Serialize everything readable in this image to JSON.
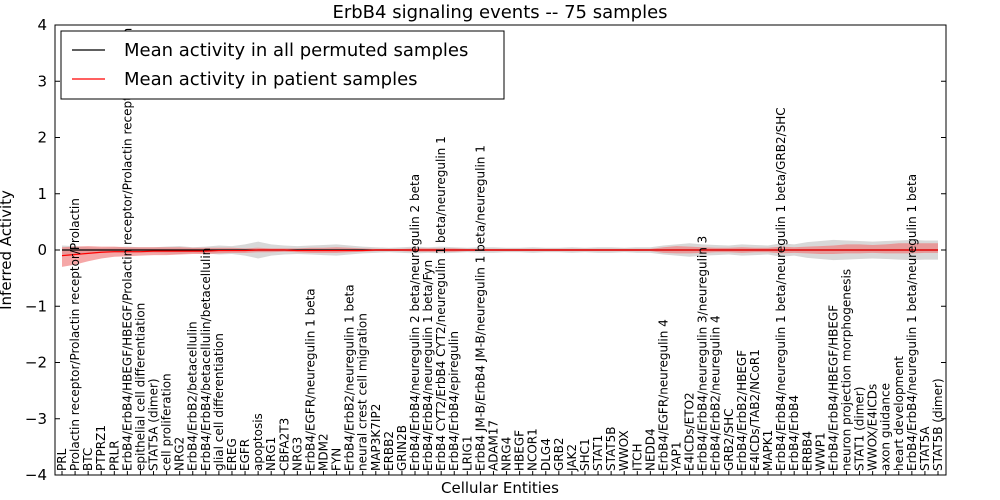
{
  "chart_data": {
    "type": "line",
    "title": "ErbB4 signaling events -- 75 samples",
    "xlabel": "Cellular Entities",
    "ylabel": "Inferred Activity",
    "ylim": [
      -4,
      4
    ],
    "yticks": [
      -4,
      -3,
      -2,
      -1,
      0,
      1,
      2,
      3,
      4
    ],
    "grid": false,
    "legend_position": "top-left",
    "colors": {
      "permuted_line": "#000000",
      "permuted_band": "#c8c8c8",
      "patient_line": "#ff0000",
      "patient_band": "#f07878"
    },
    "categories": [
      "PRL",
      "Prolactin receptor/Prolactin receptor/Prolactin",
      "BTC",
      "PTPRZ1",
      "PRLR",
      "ErbB4/ErbB4/HBEGF/HBEGF/Prolactin receptor/Prolactin receptor/Prolactin",
      "epithelial cell differentiation",
      "STAT5A (dimer)",
      "cell proliferation",
      "NRG2",
      "ErbB4/ErbB2/betacellulin",
      "ErbB4/ErbB4/betacellulin/betacellulin",
      "glial cell differentiation",
      "EREG",
      "EGFR",
      "apoptosis",
      "NRG1",
      "CBFA2T3",
      "NRG3",
      "ErbB4/EGFR/neuregulin 1 beta",
      "MDM2",
      "FYN",
      "ErbB4/ErbB2/neuregulin 1 beta",
      "neural crest cell migration",
      "MAP3K7IP2",
      "ERBB2",
      "GRIN2B",
      "ErbB4/ErbB4/neuregulin 2 beta/neuregulin 2 beta",
      "ErbB4/ErbB4/neuregulin 1 beta/Fyn",
      "ErbB4 CYT2/ErbB4 CYT2/neuregulin 1 beta/neuregulin 1",
      "ErbB4/ErbB4/epiregulin",
      "LRIG1",
      "ErbB4 JM-B/ErbB4 JM-B/neuregulin 1 beta/neuregulin 1",
      "ADAM17",
      "NRG4",
      "HBEGF",
      "NCOR1",
      "DLG4",
      "GRB2",
      "JAK2",
      "SHC1",
      "STAT1",
      "STAT5B",
      "WWOX",
      "ITCH",
      "NEDD4",
      "ErbB4/EGFR/neuregulin 4",
      "YAP1",
      "E4ICDs/ETO2",
      "ErbB4/ErbB4/neuregulin 3/neuregulin 3",
      "ErbB4/ErbB2/neuregulin 4",
      "GRB2/SHC",
      "ErbB4/ErbB2/HBEGF",
      "E4ICDs/TAB2/NCoR1",
      "MAPK1",
      "ErbB4/ErbB4/neuregulin 1 beta/neuregulin 1 beta/GRB2/SHC",
      "ErbB4/ErbB4",
      "ERBB4",
      "WWP1",
      "ErbB4/ErbB4/HBEGF/HBEGF",
      "neuron projection morphogenesis",
      "STAT1 (dimer)",
      "WWOX/E4ICDs",
      "axon guidance",
      "heart development",
      "ErbB4/ErbB4/neuregulin 1 beta/neuregulin 1 beta",
      "STAT5A",
      "STAT5B (dimer)"
    ],
    "series": [
      {
        "name": "Mean activity in all permuted samples",
        "values": [
          0.0,
          0.0,
          0.0,
          0.0,
          0.0,
          0.0,
          0.0,
          0.0,
          0.0,
          0.0,
          0.0,
          0.0,
          0.0,
          0.0,
          0.0,
          0.0,
          0.0,
          0.0,
          0.0,
          0.0,
          0.0,
          0.0,
          0.0,
          0.0,
          0.0,
          0.0,
          0.0,
          0.0,
          0.0,
          0.0,
          0.0,
          0.0,
          0.0,
          0.0,
          0.0,
          0.0,
          0.0,
          0.0,
          0.0,
          0.0,
          0.0,
          0.0,
          0.0,
          0.0,
          0.0,
          0.0,
          0.0,
          0.0,
          0.0,
          0.0,
          0.0,
          0.0,
          0.0,
          0.0,
          0.0,
          0.0,
          0.0,
          0.0,
          0.0,
          0.0,
          0.0,
          0.0,
          0.0,
          0.0,
          0.0,
          0.0,
          0.0,
          0.0
        ],
        "upper": [
          0.08,
          0.07,
          0.05,
          0.04,
          0.05,
          0.06,
          0.05,
          0.05,
          0.06,
          0.07,
          0.05,
          0.06,
          0.08,
          0.07,
          0.1,
          0.15,
          0.1,
          0.08,
          0.07,
          0.08,
          0.09,
          0.1,
          0.08,
          0.06,
          0.05,
          0.04,
          0.05,
          0.06,
          0.05,
          0.06,
          0.05,
          0.04,
          0.05,
          0.05,
          0.04,
          0.04,
          0.05,
          0.04,
          0.04,
          0.05,
          0.04,
          0.05,
          0.05,
          0.04,
          0.05,
          0.05,
          0.08,
          0.1,
          0.12,
          0.1,
          0.09,
          0.08,
          0.1,
          0.09,
          0.08,
          0.12,
          0.1,
          0.14,
          0.16,
          0.18,
          0.17,
          0.16,
          0.15,
          0.16,
          0.17,
          0.18,
          0.17,
          0.17
        ],
        "lower": [
          -0.08,
          -0.07,
          -0.05,
          -0.04,
          -0.05,
          -0.06,
          -0.05,
          -0.05,
          -0.06,
          -0.07,
          -0.05,
          -0.06,
          -0.08,
          -0.07,
          -0.1,
          -0.15,
          -0.1,
          -0.08,
          -0.07,
          -0.08,
          -0.09,
          -0.1,
          -0.08,
          -0.06,
          -0.05,
          -0.04,
          -0.05,
          -0.06,
          -0.05,
          -0.06,
          -0.05,
          -0.04,
          -0.05,
          -0.05,
          -0.04,
          -0.04,
          -0.05,
          -0.04,
          -0.04,
          -0.05,
          -0.04,
          -0.05,
          -0.05,
          -0.04,
          -0.05,
          -0.05,
          -0.08,
          -0.1,
          -0.12,
          -0.1,
          -0.09,
          -0.08,
          -0.1,
          -0.09,
          -0.08,
          -0.12,
          -0.1,
          -0.14,
          -0.16,
          -0.18,
          -0.17,
          -0.16,
          -0.15,
          -0.16,
          -0.17,
          -0.18,
          -0.17,
          -0.17
        ]
      },
      {
        "name": "Mean activity in patient samples",
        "values": [
          -0.1,
          -0.08,
          -0.06,
          -0.04,
          -0.03,
          -0.03,
          -0.03,
          -0.02,
          -0.02,
          -0.02,
          -0.02,
          -0.02,
          -0.01,
          -0.01,
          -0.01,
          0.0,
          0.0,
          0.0,
          -0.01,
          -0.01,
          -0.01,
          -0.01,
          -0.01,
          -0.01,
          0.0,
          0.0,
          0.0,
          0.0,
          0.0,
          0.0,
          0.0,
          0.0,
          0.0,
          0.0,
          0.0,
          0.0,
          0.0,
          0.0,
          0.0,
          0.0,
          0.0,
          0.0,
          0.0,
          0.0,
          0.0,
          0.0,
          0.0,
          0.0,
          0.0,
          0.0,
          0.0,
          0.0,
          0.0,
          0.0,
          0.0,
          0.0,
          0.0,
          0.0,
          0.0,
          0.0,
          0.0,
          0.0,
          0.0,
          0.0,
          0.0,
          0.0,
          0.0,
          0.0
        ],
        "upper": [
          0.05,
          0.06,
          0.07,
          0.06,
          0.06,
          0.05,
          0.05,
          0.05,
          0.05,
          0.05,
          0.04,
          0.04,
          0.04,
          0.04,
          0.03,
          0.04,
          0.03,
          0.03,
          0.03,
          0.04,
          0.04,
          0.05,
          0.04,
          0.03,
          0.02,
          0.02,
          0.02,
          0.03,
          0.03,
          0.03,
          0.03,
          0.02,
          0.02,
          0.02,
          0.02,
          0.02,
          0.02,
          0.02,
          0.02,
          0.02,
          0.02,
          0.02,
          0.02,
          0.02,
          0.02,
          0.02,
          0.05,
          0.07,
          0.06,
          0.05,
          0.04,
          0.04,
          0.05,
          0.04,
          0.04,
          0.06,
          0.05,
          0.06,
          0.07,
          0.08,
          0.1,
          0.1,
          0.09,
          0.1,
          0.12,
          0.12,
          0.12,
          0.12
        ],
        "lower": [
          -0.3,
          -0.26,
          -0.2,
          -0.15,
          -0.12,
          -0.11,
          -0.1,
          -0.09,
          -0.09,
          -0.08,
          -0.07,
          -0.07,
          -0.06,
          -0.05,
          -0.05,
          -0.04,
          -0.04,
          -0.03,
          -0.04,
          -0.05,
          -0.05,
          -0.05,
          -0.04,
          -0.03,
          -0.02,
          -0.02,
          -0.02,
          -0.03,
          -0.03,
          -0.03,
          -0.03,
          -0.02,
          -0.02,
          -0.02,
          -0.02,
          -0.02,
          -0.02,
          -0.02,
          -0.02,
          -0.02,
          -0.02,
          -0.02,
          -0.02,
          -0.02,
          -0.02,
          -0.02,
          -0.05,
          -0.06,
          -0.06,
          -0.05,
          -0.04,
          -0.04,
          -0.05,
          -0.04,
          -0.04,
          -0.06,
          -0.05,
          -0.06,
          -0.07,
          -0.07,
          -0.06,
          -0.06,
          -0.05,
          -0.06,
          -0.06,
          -0.06,
          -0.05,
          -0.05
        ]
      }
    ]
  }
}
